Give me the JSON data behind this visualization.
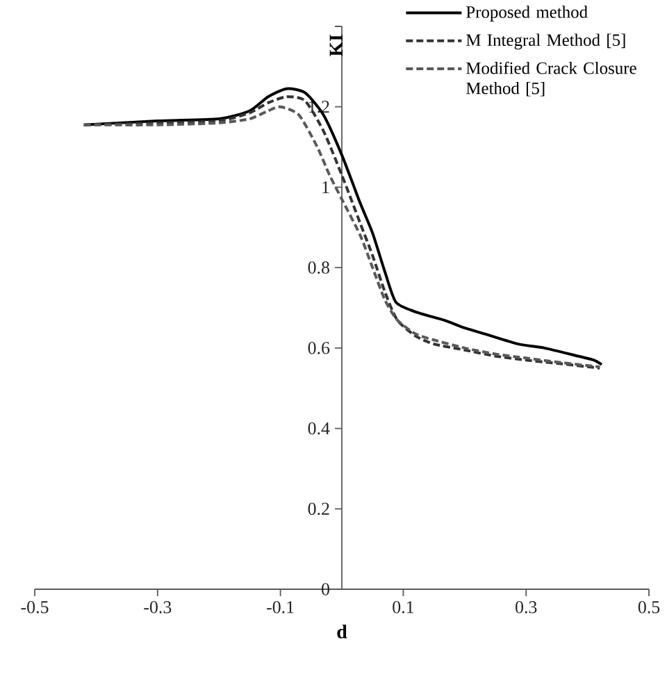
{
  "chart_data": {
    "type": "line",
    "xlabel": "d",
    "ylabel": "KI",
    "xlim": [
      -0.5,
      0.5
    ],
    "ylim": [
      0,
      1.4
    ],
    "xticks": [
      -0.5,
      -0.3,
      -0.1,
      0.1,
      0.3,
      0.5
    ],
    "yticks": [
      {
        "value": 0,
        "label": "0"
      },
      0.2,
      0.4,
      0.6,
      0.8,
      1,
      1.2,
      {
        "value": 1.4,
        "label": null
      }
    ],
    "legend": "top right",
    "grid": false,
    "marker": "none",
    "series": [
      {
        "name": "Proposed method",
        "color": "#000000",
        "line_style": "solid",
        "x": [
          -0.42,
          -0.3,
          -0.2,
          -0.15,
          -0.12,
          -0.09,
          -0.06,
          -0.03,
          0,
          0.03,
          0.05,
          0.07,
          0.088,
          0.12,
          0.167,
          0.2,
          0.235,
          0.287,
          0.33,
          0.387,
          0.41,
          0.423
        ],
        "values": [
          1.155,
          1.165,
          1.17,
          1.19,
          1.225,
          1.245,
          1.235,
          1.18,
          1.08,
          0.96,
          0.886,
          0.79,
          0.714,
          0.69,
          0.669,
          0.65,
          0.634,
          0.61,
          0.6,
          0.579,
          0.57,
          0.559
        ]
      },
      {
        "name": "M Integral Method [5]",
        "color": "#333333",
        "line_style": "dashed",
        "x": [
          -0.42,
          -0.3,
          -0.2,
          -0.15,
          -0.12,
          -0.09,
          -0.06,
          -0.03,
          0,
          0.03,
          0.05,
          0.07,
          0.09,
          0.12,
          0.15,
          0.2,
          0.25,
          0.3,
          0.35,
          0.42
        ],
        "values": [
          1.155,
          1.16,
          1.165,
          1.185,
          1.21,
          1.225,
          1.215,
          1.14,
          1.03,
          0.91,
          0.83,
          0.74,
          0.67,
          0.63,
          0.61,
          0.595,
          0.58,
          0.57,
          0.562,
          0.55
        ]
      },
      {
        "name": "Modified Crack Closure Method [5]",
        "color": "#595959",
        "line_style": "dashed",
        "x": [
          -0.42,
          -0.3,
          -0.2,
          -0.15,
          -0.12,
          -0.1,
          -0.07,
          -0.04,
          -0.02,
          0,
          0.03,
          0.05,
          0.07,
          0.09,
          0.12,
          0.15,
          0.2,
          0.25,
          0.3,
          0.35,
          0.42
        ],
        "values": [
          1.155,
          1.155,
          1.16,
          1.17,
          1.19,
          1.2,
          1.18,
          1.1,
          1.03,
          0.97,
          0.88,
          0.8,
          0.72,
          0.67,
          0.635,
          0.62,
          0.6,
          0.585,
          0.575,
          0.565,
          0.553
        ]
      }
    ]
  }
}
